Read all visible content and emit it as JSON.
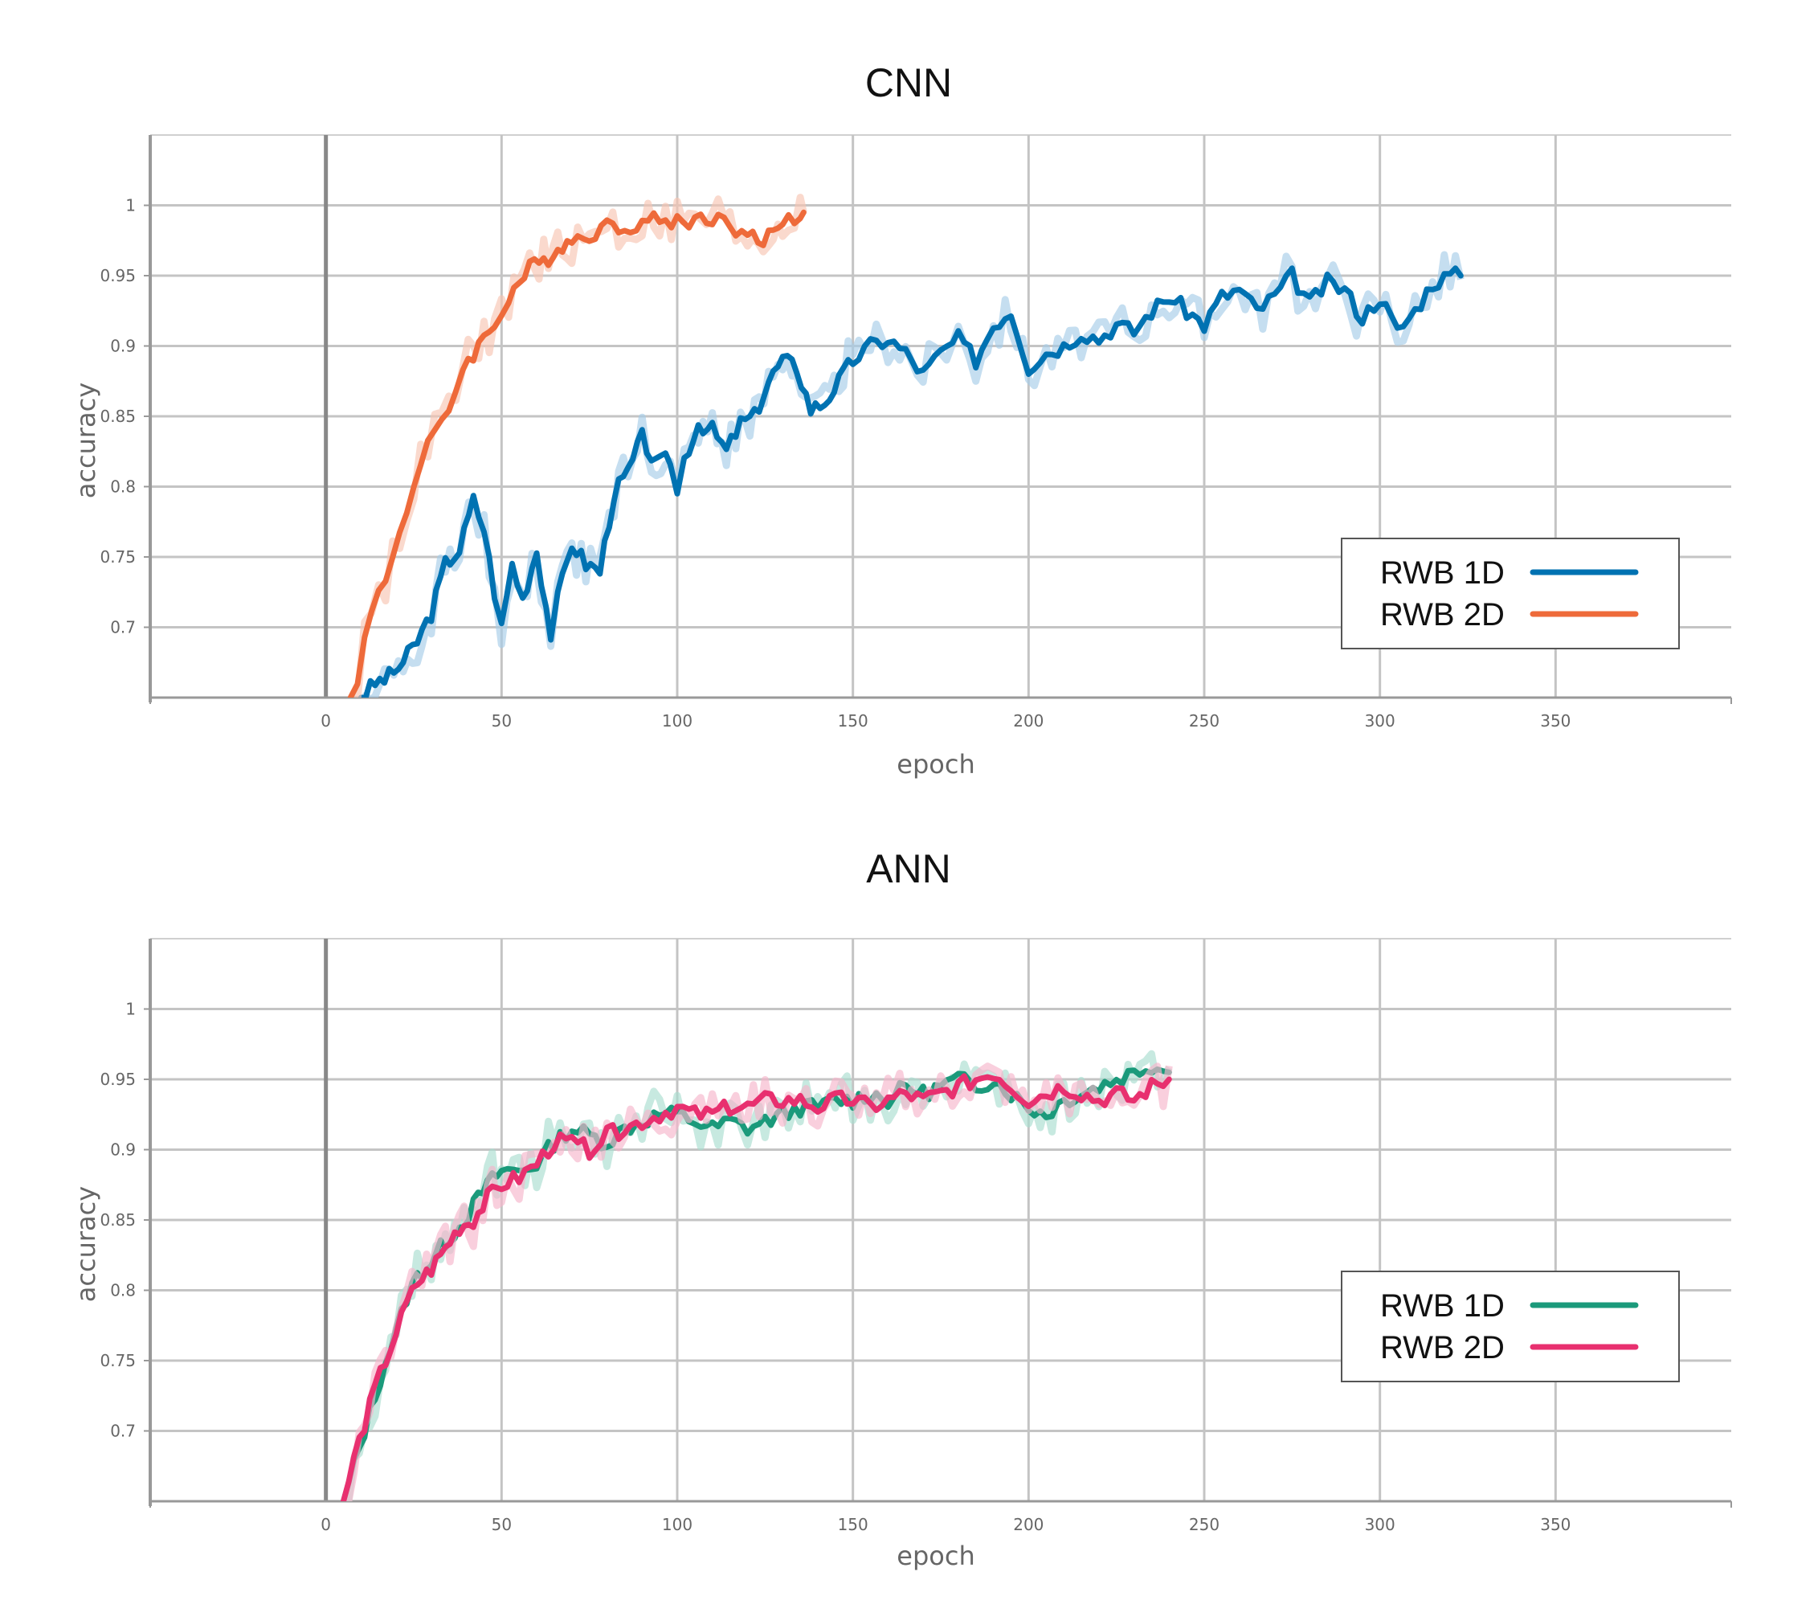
{
  "chart_data": [
    {
      "type": "line",
      "title": "CNN",
      "xlabel": "epoch",
      "ylabel": "accuracy",
      "xlim": [
        -50,
        400
      ],
      "ylim": [
        0.65,
        1.05
      ],
      "xticks": [
        0,
        50,
        100,
        150,
        200,
        250,
        300,
        350
      ],
      "xtick_labels": [
        "0",
        "50",
        "100",
        "150",
        "200",
        "250",
        "300",
        "350"
      ],
      "yticks": [
        0.7,
        0.75,
        0.8,
        0.85,
        0.9,
        0.95,
        1
      ],
      "ytick_labels": [
        "0.7",
        "0.75",
        "0.8",
        "0.85",
        "0.9",
        "0.95",
        "1"
      ],
      "grid": true,
      "legend_position": "lower-right",
      "series": [
        {
          "name": "RWB 1D",
          "color": "#0072b2",
          "band_color": "#a6cde8",
          "x": [
            10,
            14,
            18,
            22,
            26,
            30,
            34,
            38,
            42,
            45,
            48,
            50,
            53,
            56,
            60,
            64,
            66,
            70,
            74,
            78,
            82,
            86,
            90,
            94,
            98,
            100,
            102,
            106,
            110,
            114,
            118,
            122,
            126,
            130,
            134,
            138,
            142,
            146,
            150,
            155,
            160,
            165,
            170,
            175,
            180,
            185,
            190,
            195,
            200,
            205,
            210,
            215,
            220,
            225,
            230,
            235,
            240,
            245,
            250,
            255,
            260,
            265,
            270,
            275,
            280,
            285,
            290,
            295,
            300,
            305,
            310,
            315,
            320,
            323
          ],
          "y": [
            0.65,
            0.66,
            0.665,
            0.675,
            0.69,
            0.71,
            0.745,
            0.755,
            0.79,
            0.77,
            0.725,
            0.7,
            0.745,
            0.72,
            0.755,
            0.695,
            0.72,
            0.76,
            0.745,
            0.74,
            0.795,
            0.81,
            0.835,
            0.815,
            0.82,
            0.795,
            0.82,
            0.845,
            0.84,
            0.825,
            0.845,
            0.85,
            0.875,
            0.89,
            0.885,
            0.855,
            0.86,
            0.875,
            0.89,
            0.9,
            0.905,
            0.895,
            0.88,
            0.895,
            0.905,
            0.89,
            0.915,
            0.925,
            0.885,
            0.895,
            0.9,
            0.91,
            0.905,
            0.915,
            0.91,
            0.925,
            0.935,
            0.925,
            0.915,
            0.935,
            0.94,
            0.925,
            0.935,
            0.95,
            0.93,
            0.945,
            0.94,
            0.92,
            0.935,
            0.91,
            0.925,
            0.945,
            0.95,
            0.95
          ]
        },
        {
          "name": "RWB 2D",
          "color": "#ee6a3a",
          "band_color": "#f7c4b2",
          "x": [
            7,
            9,
            11,
            13,
            15,
            17,
            19,
            21,
            23,
            25,
            27,
            29,
            31,
            33,
            35,
            37,
            39,
            42,
            45,
            48,
            50,
            52,
            55,
            58,
            62,
            66,
            70,
            75,
            80,
            85,
            90,
            95,
            100,
            105,
            110,
            115,
            120,
            123,
            126,
            130,
            135,
            136
          ],
          "y": [
            0.65,
            0.665,
            0.69,
            0.71,
            0.725,
            0.735,
            0.75,
            0.77,
            0.785,
            0.8,
            0.815,
            0.83,
            0.835,
            0.845,
            0.855,
            0.87,
            0.885,
            0.895,
            0.905,
            0.915,
            0.925,
            0.935,
            0.945,
            0.955,
            0.96,
            0.97,
            0.975,
            0.98,
            0.985,
            0.985,
            0.988,
            0.99,
            0.988,
            0.99,
            0.992,
            0.985,
            0.98,
            0.972,
            0.978,
            0.99,
            0.992,
            0.995
          ]
        }
      ]
    },
    {
      "type": "line",
      "title": "ANN",
      "xlabel": "epoch",
      "ylabel": "accuracy",
      "xlim": [
        -50,
        400
      ],
      "ylim": [
        0.65,
        1.05
      ],
      "xticks": [
        0,
        50,
        100,
        150,
        200,
        250,
        300,
        350
      ],
      "xtick_labels": [
        "0",
        "50",
        "100",
        "150",
        "200",
        "250",
        "300",
        "350"
      ],
      "yticks": [
        0.7,
        0.75,
        0.8,
        0.85,
        0.9,
        0.95,
        1
      ],
      "ytick_labels": [
        "0.7",
        "0.75",
        "0.8",
        "0.85",
        "0.9",
        "0.95",
        "1"
      ],
      "grid": true,
      "legend_position": "lower-right",
      "series": [
        {
          "name": "RWB 1D",
          "color": "#1b9a7b",
          "band_color": "#a9ddd0",
          "x": [
            5,
            8,
            11,
            14,
            17,
            20,
            23,
            26,
            30,
            34,
            38,
            42,
            46,
            50,
            55,
            60,
            65,
            70,
            75,
            80,
            85,
            90,
            95,
            100,
            105,
            110,
            115,
            120,
            125,
            130,
            135,
            140,
            145,
            150,
            155,
            160,
            165,
            170,
            175,
            180,
            185,
            190,
            195,
            200,
            205,
            210,
            215,
            220,
            225,
            230,
            235,
            240
          ],
          "y": [
            0.65,
            0.675,
            0.7,
            0.725,
            0.75,
            0.77,
            0.795,
            0.81,
            0.82,
            0.835,
            0.845,
            0.86,
            0.875,
            0.885,
            0.885,
            0.89,
            0.905,
            0.915,
            0.91,
            0.905,
            0.915,
            0.92,
            0.925,
            0.925,
            0.92,
            0.915,
            0.92,
            0.915,
            0.92,
            0.925,
            0.93,
            0.93,
            0.935,
            0.935,
            0.94,
            0.935,
            0.945,
            0.94,
            0.945,
            0.95,
            0.945,
            0.95,
            0.94,
            0.93,
            0.925,
            0.935,
            0.94,
            0.945,
            0.95,
            0.955,
            0.96,
            0.955
          ]
        },
        {
          "name": "RWB 2D",
          "color": "#e8306f",
          "band_color": "#f6b6cb",
          "x": [
            5,
            8,
            11,
            14,
            17,
            20,
            23,
            26,
            30,
            34,
            38,
            42,
            46,
            50,
            55,
            60,
            65,
            70,
            75,
            80,
            85,
            90,
            95,
            100,
            105,
            110,
            115,
            120,
            125,
            130,
            135,
            140,
            145,
            150,
            155,
            160,
            165,
            170,
            175,
            180,
            185,
            190,
            195,
            200,
            205,
            210,
            215,
            220,
            225,
            230,
            235,
            240
          ],
          "y": [
            0.65,
            0.68,
            0.705,
            0.73,
            0.75,
            0.77,
            0.79,
            0.805,
            0.815,
            0.83,
            0.845,
            0.85,
            0.865,
            0.875,
            0.88,
            0.89,
            0.905,
            0.905,
            0.9,
            0.91,
            0.915,
            0.92,
            0.925,
            0.93,
            0.925,
            0.925,
            0.93,
            0.93,
            0.935,
            0.935,
            0.935,
            0.93,
            0.935,
            0.935,
            0.93,
            0.935,
            0.94,
            0.935,
            0.94,
            0.945,
            0.95,
            0.955,
            0.945,
            0.935,
            0.94,
            0.945,
            0.94,
            0.935,
            0.94,
            0.935,
            0.945,
            0.95
          ]
        }
      ]
    }
  ]
}
